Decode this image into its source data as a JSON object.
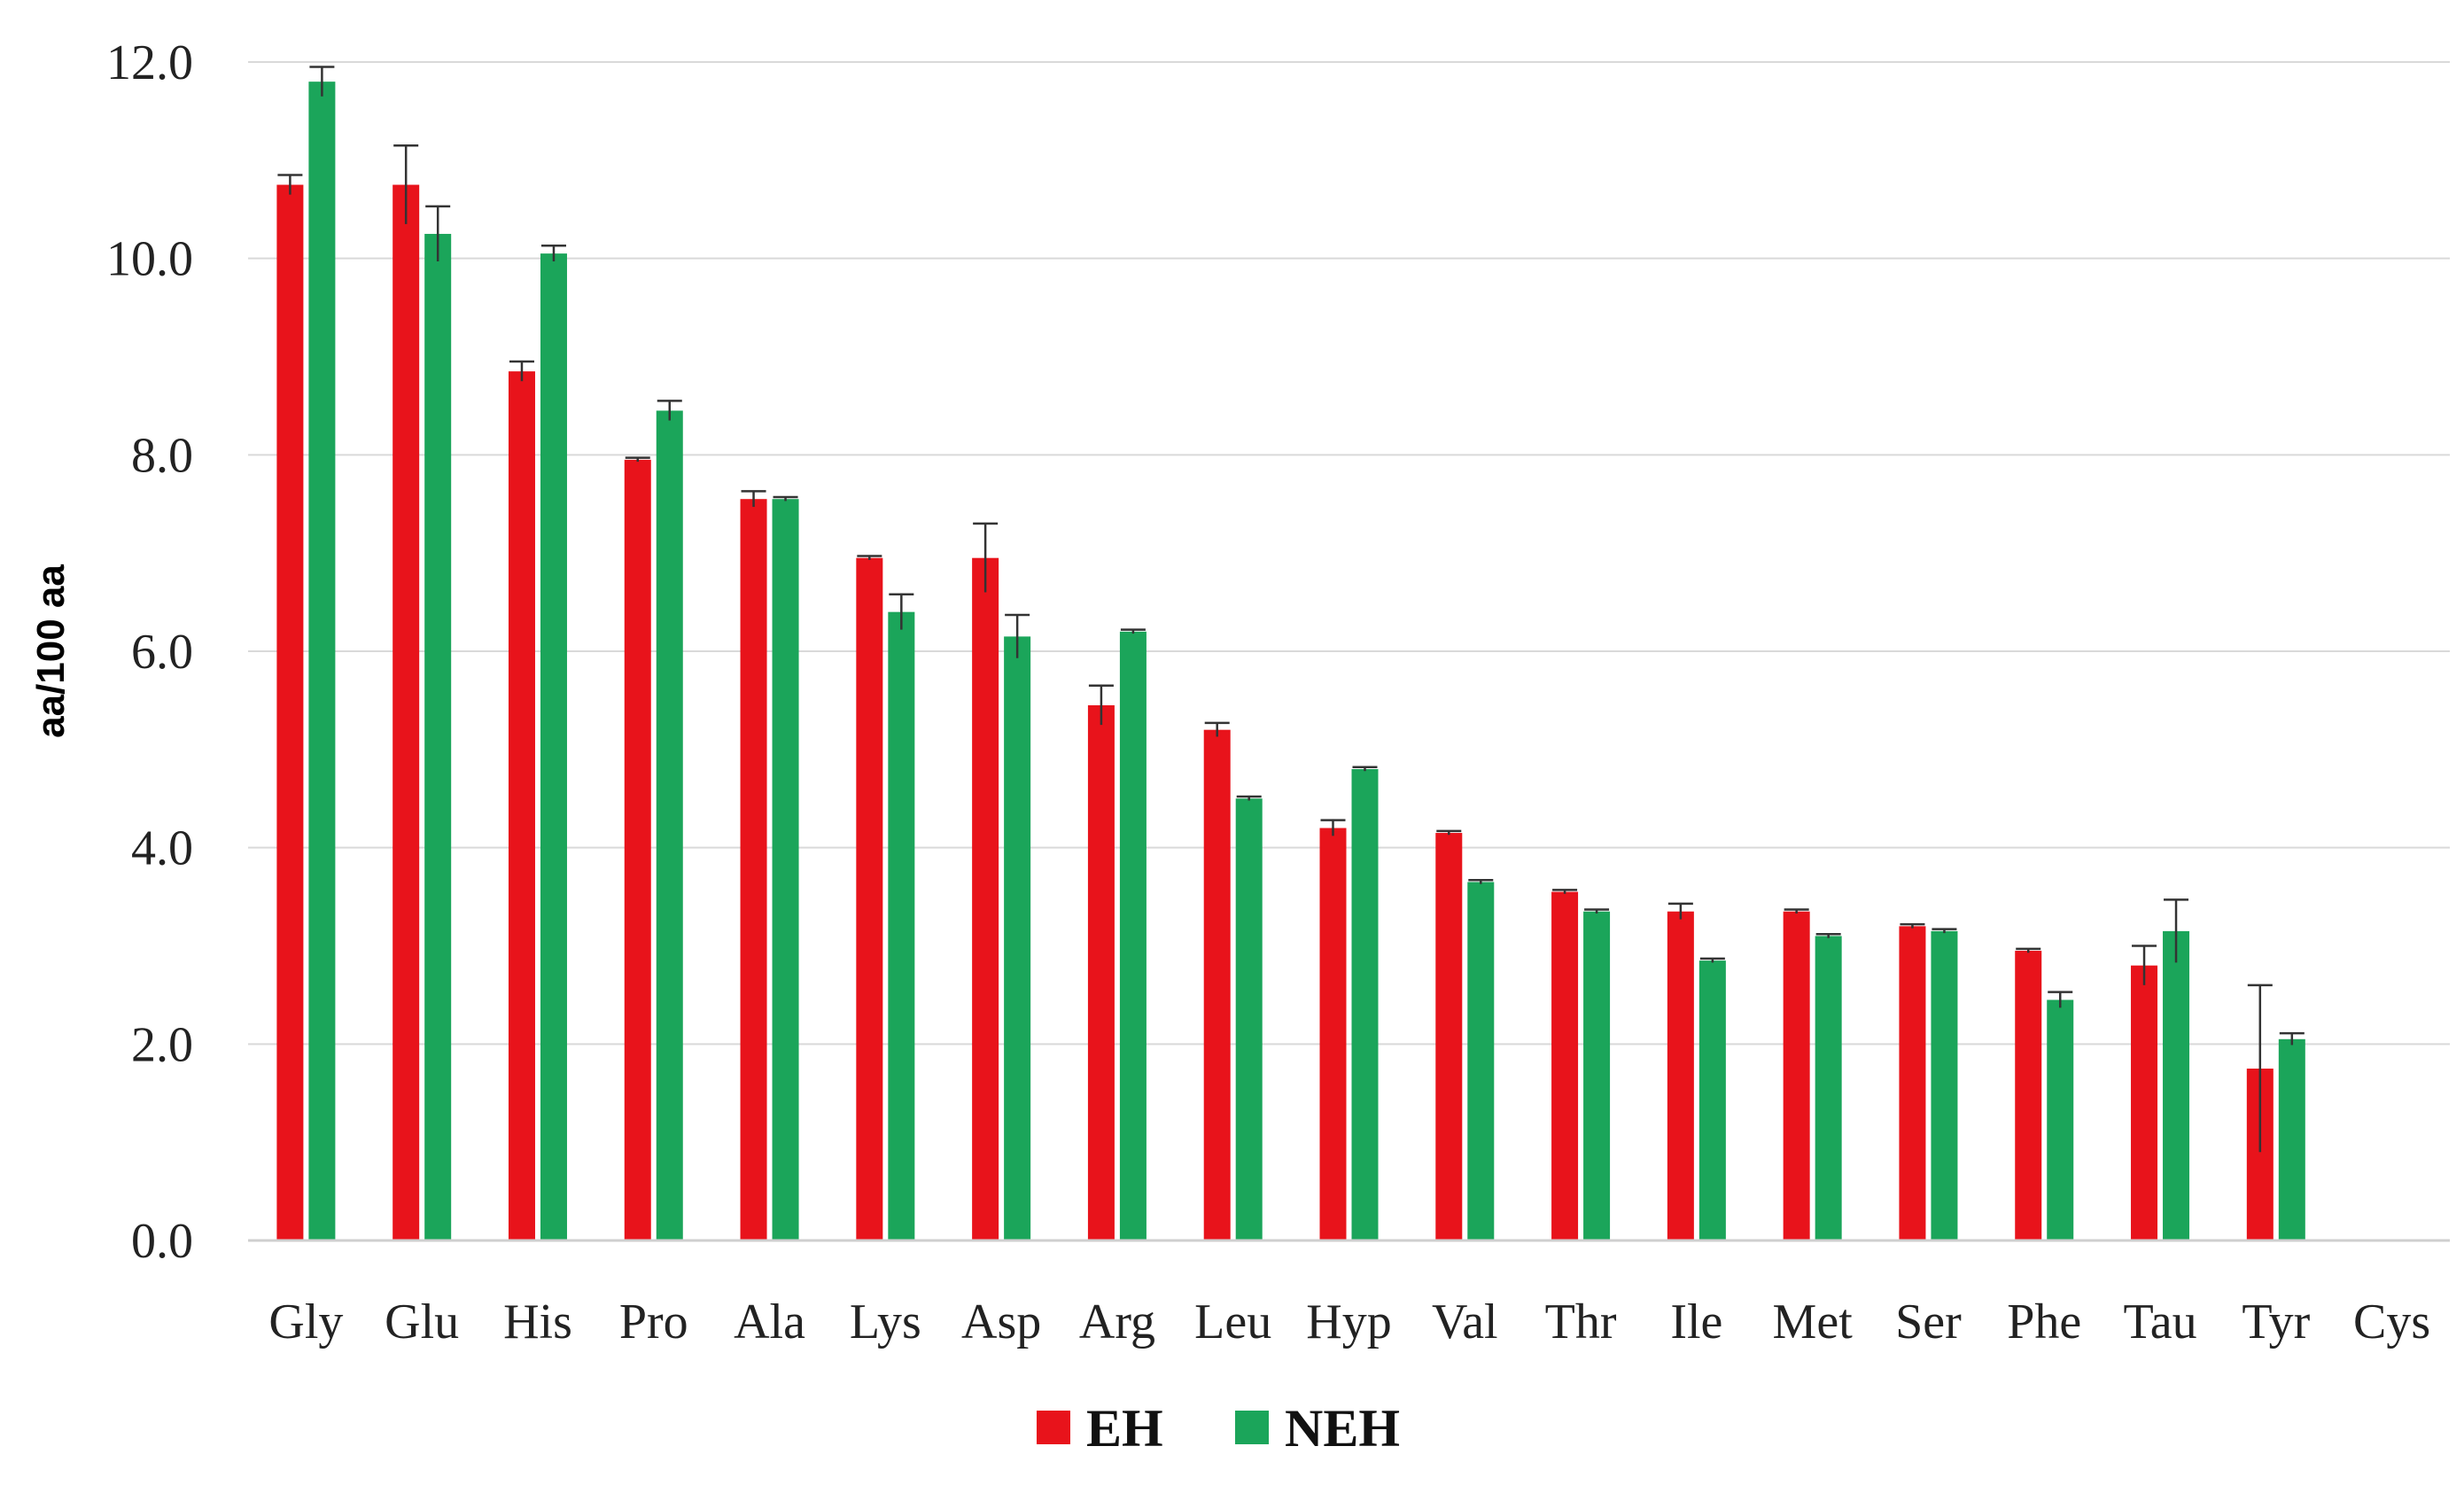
{
  "chart_data": {
    "type": "bar",
    "title": "",
    "xlabel": "",
    "ylabel": "aa/100 aa",
    "ylim": [
      0,
      12
    ],
    "yticks": [
      "0.0",
      "2.0",
      "4.0",
      "6.0",
      "8.0",
      "10.0",
      "12.0"
    ],
    "grid": true,
    "legend_position": "bottom-center",
    "categories": [
      "Gly",
      "Glu",
      "His",
      "Pro",
      "Ala",
      "Lys",
      "Asp",
      "Arg",
      "Leu",
      "Hyp",
      "Val",
      "Thr",
      "Ile",
      "Met",
      "Ser",
      "Phe",
      "Tau",
      "Tyr",
      "Cys"
    ],
    "series": [
      {
        "name": "EH",
        "color": "#e8131b",
        "values": [
          10.75,
          10.75,
          8.85,
          7.95,
          7.55,
          6.95,
          6.95,
          5.45,
          5.2,
          4.2,
          4.15,
          3.55,
          3.35,
          3.35,
          3.2,
          2.95,
          2.8,
          1.75,
          0
        ],
        "errors": [
          0.1,
          0.4,
          0.1,
          0.02,
          0.08,
          0.02,
          0.35,
          0.2,
          0.07,
          0.08,
          0.02,
          0.02,
          0.08,
          0.02,
          0.02,
          0.02,
          0.2,
          0.85,
          0
        ]
      },
      {
        "name": "NEH",
        "color": "#1ba55a",
        "values": [
          11.8,
          10.25,
          10.05,
          8.45,
          7.55,
          6.4,
          6.15,
          6.2,
          4.5,
          4.8,
          3.65,
          3.35,
          2.85,
          3.1,
          3.15,
          2.45,
          3.15,
          2.05,
          0
        ],
        "errors": [
          0.15,
          0.28,
          0.08,
          0.1,
          0.02,
          0.18,
          0.22,
          0.02,
          0.02,
          0.02,
          0.02,
          0.02,
          0.02,
          0.02,
          0.02,
          0.08,
          0.32,
          0.06,
          0
        ]
      }
    ]
  }
}
